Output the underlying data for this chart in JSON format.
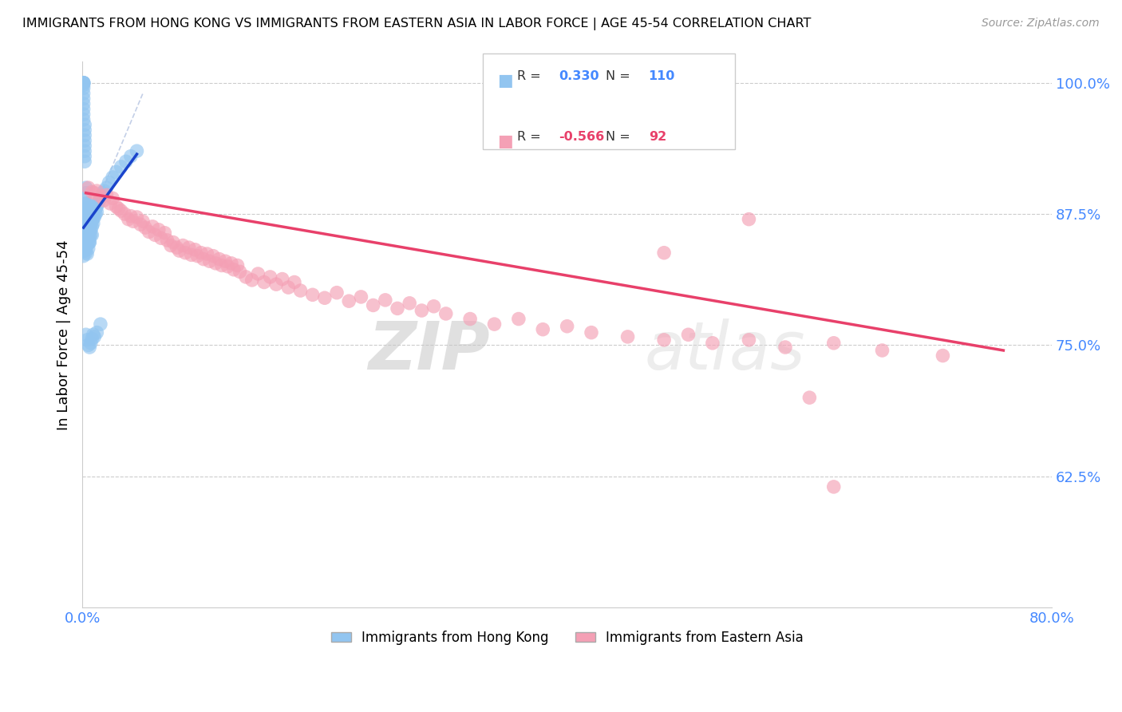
{
  "title": "IMMIGRANTS FROM HONG KONG VS IMMIGRANTS FROM EASTERN ASIA IN LABOR FORCE | AGE 45-54 CORRELATION CHART",
  "source": "Source: ZipAtlas.com",
  "ylabel": "In Labor Force | Age 45-54",
  "xmin": 0.0,
  "xmax": 0.8,
  "ymin": 0.5,
  "ymax": 1.02,
  "yticks": [
    0.625,
    0.75,
    0.875,
    1.0
  ],
  "ytick_labels": [
    "62.5%",
    "75.0%",
    "87.5%",
    "100.0%"
  ],
  "xticks": [
    0.0,
    0.1,
    0.2,
    0.3,
    0.4,
    0.5,
    0.6,
    0.7,
    0.8
  ],
  "xtick_labels": [
    "0.0%",
    "",
    "",
    "",
    "",
    "",
    "",
    "",
    "80.0%"
  ],
  "legend_blue_R": "0.330",
  "legend_blue_N": "110",
  "legend_pink_R": "-0.566",
  "legend_pink_N": "92",
  "blue_color": "#92C5F0",
  "pink_color": "#F4A0B5",
  "blue_line_color": "#1A44CC",
  "pink_line_color": "#E8406A",
  "axis_color": "#4488FF",
  "watermark_zip": "ZIP",
  "watermark_atlas": "atlas",
  "blue_scatter_x": [
    0.001,
    0.001,
    0.001,
    0.001,
    0.001,
    0.001,
    0.001,
    0.001,
    0.001,
    0.001,
    0.001,
    0.001,
    0.002,
    0.002,
    0.002,
    0.002,
    0.002,
    0.002,
    0.002,
    0.002,
    0.002,
    0.003,
    0.003,
    0.003,
    0.003,
    0.003,
    0.003,
    0.003,
    0.003,
    0.003,
    0.003,
    0.004,
    0.004,
    0.004,
    0.004,
    0.004,
    0.004,
    0.004,
    0.004,
    0.004,
    0.005,
    0.005,
    0.005,
    0.005,
    0.005,
    0.005,
    0.005,
    0.005,
    0.005,
    0.005,
    0.006,
    0.006,
    0.006,
    0.006,
    0.006,
    0.006,
    0.006,
    0.007,
    0.007,
    0.007,
    0.007,
    0.007,
    0.008,
    0.008,
    0.008,
    0.008,
    0.009,
    0.009,
    0.009,
    0.01,
    0.01,
    0.01,
    0.011,
    0.011,
    0.012,
    0.012,
    0.013,
    0.014,
    0.015,
    0.016,
    0.017,
    0.018,
    0.02,
    0.022,
    0.025,
    0.028,
    0.032,
    0.036,
    0.04,
    0.045,
    0.003,
    0.004,
    0.005,
    0.006,
    0.007,
    0.008,
    0.009,
    0.01,
    0.012,
    0.015,
    0.001,
    0.001,
    0.002,
    0.002,
    0.003,
    0.003,
    0.004,
    0.005,
    0.006,
    0.008
  ],
  "blue_scatter_y": [
    0.998,
    1.0,
    1.0,
    1.0,
    1.0,
    0.995,
    0.99,
    0.985,
    0.98,
    0.975,
    0.97,
    0.965,
    0.96,
    0.955,
    0.95,
    0.945,
    0.94,
    0.935,
    0.93,
    0.925,
    0.89,
    0.885,
    0.88,
    0.875,
    0.87,
    0.865,
    0.86,
    0.855,
    0.85,
    0.895,
    0.9,
    0.885,
    0.88,
    0.875,
    0.87,
    0.865,
    0.86,
    0.855,
    0.85,
    0.845,
    0.883,
    0.878,
    0.873,
    0.868,
    0.863,
    0.858,
    0.853,
    0.848,
    0.88,
    0.875,
    0.878,
    0.873,
    0.868,
    0.863,
    0.858,
    0.853,
    0.848,
    0.875,
    0.87,
    0.865,
    0.86,
    0.855,
    0.878,
    0.873,
    0.868,
    0.863,
    0.876,
    0.871,
    0.866,
    0.882,
    0.877,
    0.872,
    0.88,
    0.875,
    0.882,
    0.877,
    0.885,
    0.888,
    0.89,
    0.892,
    0.895,
    0.897,
    0.9,
    0.905,
    0.91,
    0.915,
    0.92,
    0.925,
    0.93,
    0.935,
    0.76,
    0.755,
    0.75,
    0.748,
    0.752,
    0.756,
    0.76,
    0.758,
    0.762,
    0.77,
    0.84,
    0.835,
    0.845,
    0.84,
    0.838,
    0.843,
    0.837,
    0.842,
    0.848,
    0.855
  ],
  "pink_scatter_x": [
    0.005,
    0.008,
    0.01,
    0.012,
    0.015,
    0.018,
    0.02,
    0.023,
    0.025,
    0.028,
    0.03,
    0.032,
    0.035,
    0.038,
    0.04,
    0.042,
    0.045,
    0.048,
    0.05,
    0.052,
    0.055,
    0.058,
    0.06,
    0.063,
    0.065,
    0.068,
    0.07,
    0.073,
    0.075,
    0.078,
    0.08,
    0.083,
    0.085,
    0.088,
    0.09,
    0.093,
    0.095,
    0.098,
    0.1,
    0.103,
    0.105,
    0.108,
    0.11,
    0.113,
    0.115,
    0.118,
    0.12,
    0.123,
    0.125,
    0.128,
    0.13,
    0.135,
    0.14,
    0.145,
    0.15,
    0.155,
    0.16,
    0.165,
    0.17,
    0.175,
    0.18,
    0.19,
    0.2,
    0.21,
    0.22,
    0.23,
    0.24,
    0.25,
    0.26,
    0.27,
    0.28,
    0.29,
    0.3,
    0.32,
    0.34,
    0.36,
    0.38,
    0.4,
    0.42,
    0.45,
    0.48,
    0.5,
    0.52,
    0.55,
    0.58,
    0.62,
    0.66,
    0.71,
    0.48,
    0.55,
    0.6,
    0.62
  ],
  "pink_scatter_y": [
    0.9,
    0.896,
    0.895,
    0.897,
    0.892,
    0.888,
    0.893,
    0.885,
    0.89,
    0.882,
    0.88,
    0.878,
    0.875,
    0.87,
    0.873,
    0.868,
    0.872,
    0.865,
    0.868,
    0.862,
    0.858,
    0.863,
    0.855,
    0.86,
    0.852,
    0.857,
    0.85,
    0.845,
    0.848,
    0.843,
    0.84,
    0.845,
    0.838,
    0.843,
    0.836,
    0.841,
    0.835,
    0.838,
    0.832,
    0.837,
    0.83,
    0.835,
    0.828,
    0.832,
    0.826,
    0.83,
    0.825,
    0.828,
    0.822,
    0.826,
    0.82,
    0.815,
    0.812,
    0.818,
    0.81,
    0.815,
    0.808,
    0.813,
    0.805,
    0.81,
    0.802,
    0.798,
    0.795,
    0.8,
    0.792,
    0.796,
    0.788,
    0.793,
    0.785,
    0.79,
    0.783,
    0.787,
    0.78,
    0.775,
    0.77,
    0.775,
    0.765,
    0.768,
    0.762,
    0.758,
    0.755,
    0.76,
    0.752,
    0.755,
    0.748,
    0.752,
    0.745,
    0.74,
    0.838,
    0.87,
    0.7,
    0.615
  ],
  "pink_trend_x": [
    0.003,
    0.76
  ],
  "pink_trend_y": [
    0.895,
    0.745
  ],
  "blue_trend_x": [
    0.001,
    0.045
  ],
  "blue_trend_y": [
    0.862,
    0.932
  ]
}
